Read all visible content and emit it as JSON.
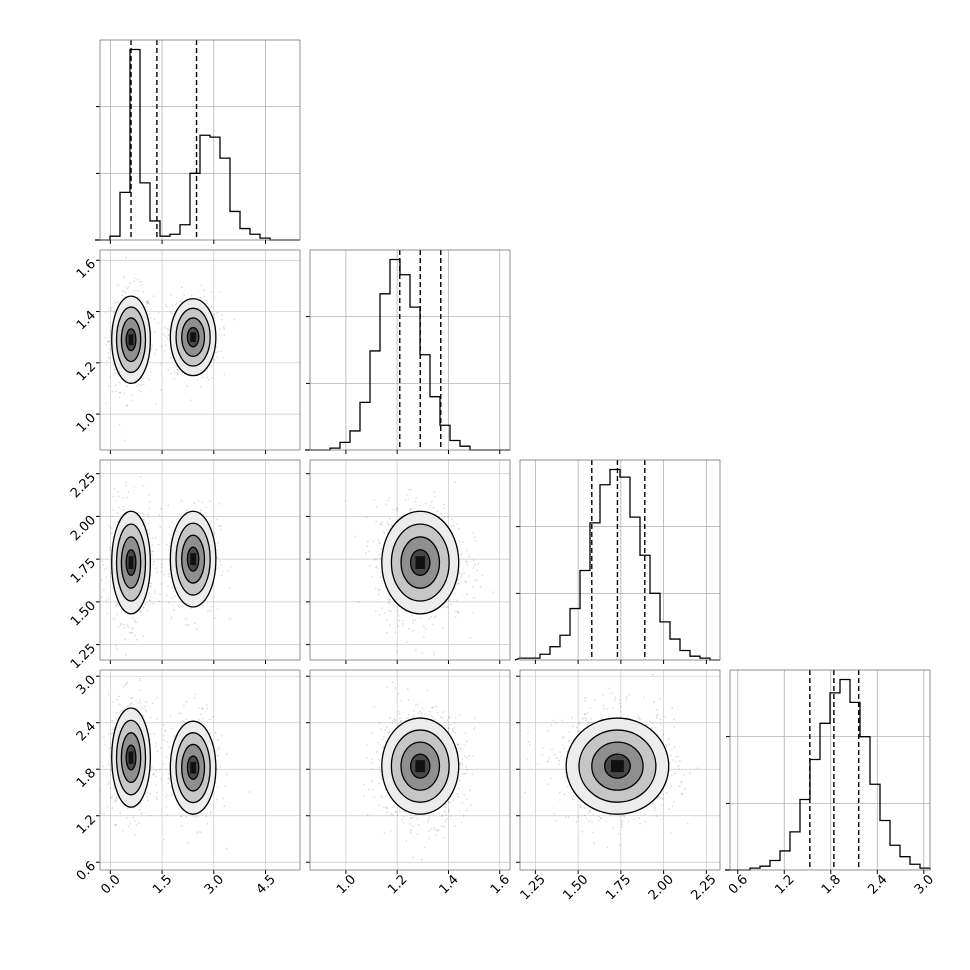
{
  "chart_data": {
    "type": "corner",
    "grid": true,
    "params": [
      {
        "xlim": [
          -0.3,
          5.5
        ],
        "ticks": [
          0.0,
          1.5,
          3.0,
          4.5
        ],
        "tick_labels": [
          "0.0",
          "1.5",
          "3.0",
          "4.5"
        ],
        "quantiles": [
          0.6,
          1.35,
          2.5
        ]
      },
      {
        "xlim": [
          0.86,
          1.64
        ],
        "ticks": [
          1.0,
          1.2,
          1.4,
          1.6
        ],
        "tick_labels": [
          "1.0",
          "1.2",
          "1.4",
          "1.6"
        ],
        "quantiles": [
          1.21,
          1.29,
          1.37
        ]
      },
      {
        "xlim": [
          1.16,
          2.33
        ],
        "ticks": [
          1.25,
          1.5,
          1.75,
          2.0,
          2.25
        ],
        "tick_labels": [
          "1.25",
          "1.50",
          "1.75",
          "2.00",
          "2.25"
        ],
        "quantiles": [
          1.58,
          1.73,
          1.89
        ]
      },
      {
        "xlim": [
          0.5,
          3.08
        ],
        "ticks": [
          0.6,
          1.2,
          1.8,
          2.4,
          3.0
        ],
        "tick_labels": [
          "0.6",
          "1.2",
          "1.8",
          "2.4",
          "3.0"
        ],
        "quantiles": [
          1.53,
          1.84,
          2.16
        ]
      }
    ],
    "histograms": [
      {
        "edges": [
          -0.3,
          5.5
        ],
        "counts": [
          0.0,
          0.02,
          0.25,
          1.0,
          0.3,
          0.1,
          0.02,
          0.03,
          0.08,
          0.35,
          0.55,
          0.54,
          0.43,
          0.15,
          0.06,
          0.03,
          0.01,
          0.0,
          0.0,
          0.0
        ]
      },
      {
        "edges": [
          0.86,
          1.64
        ],
        "counts": [
          0.0,
          0.0,
          0.01,
          0.04,
          0.1,
          0.25,
          0.52,
          0.82,
          1.0,
          0.92,
          0.75,
          0.5,
          0.28,
          0.13,
          0.05,
          0.02,
          0.0,
          0.0,
          0.0,
          0.0
        ]
      },
      {
        "edges": [
          1.16,
          2.33
        ],
        "counts": [
          0.01,
          0.01,
          0.03,
          0.07,
          0.13,
          0.27,
          0.47,
          0.72,
          0.92,
          1.0,
          0.96,
          0.75,
          0.55,
          0.35,
          0.2,
          0.11,
          0.05,
          0.02,
          0.01,
          0.0
        ]
      },
      {
        "edges": [
          0.5,
          3.08
        ],
        "counts": [
          0.0,
          0.0,
          0.01,
          0.02,
          0.05,
          0.1,
          0.2,
          0.37,
          0.58,
          0.77,
          0.93,
          1.0,
          0.88,
          0.7,
          0.45,
          0.26,
          0.13,
          0.07,
          0.03,
          0.01
        ]
      }
    ],
    "bivariate": [
      {
        "row": 1,
        "col": 0,
        "modes": [
          {
            "x": 0.6,
            "y": 1.29,
            "sx": 0.28,
            "sy": 0.085,
            "w": 1.0
          },
          {
            "x": 2.4,
            "y": 1.3,
            "sx": 0.33,
            "sy": 0.075,
            "w": 0.7
          }
        ]
      },
      {
        "row": 2,
        "col": 0,
        "modes": [
          {
            "x": 0.6,
            "y": 1.73,
            "sx": 0.28,
            "sy": 0.15,
            "w": 1.0
          },
          {
            "x": 2.4,
            "y": 1.75,
            "sx": 0.33,
            "sy": 0.14,
            "w": 0.7
          }
        ]
      },
      {
        "row": 2,
        "col": 1,
        "modes": [
          {
            "x": 1.29,
            "y": 1.73,
            "sx": 0.075,
            "sy": 0.15,
            "w": 1.0
          }
        ]
      },
      {
        "row": 3,
        "col": 0,
        "modes": [
          {
            "x": 0.6,
            "y": 1.95,
            "sx": 0.28,
            "sy": 0.32,
            "w": 1.0
          },
          {
            "x": 2.4,
            "y": 1.82,
            "sx": 0.33,
            "sy": 0.3,
            "w": 0.7
          }
        ]
      },
      {
        "row": 3,
        "col": 1,
        "modes": [
          {
            "x": 1.29,
            "y": 1.84,
            "sx": 0.075,
            "sy": 0.31,
            "w": 1.0
          }
        ]
      },
      {
        "row": 3,
        "col": 2,
        "modes": [
          {
            "x": 1.73,
            "y": 1.84,
            "sx": 0.15,
            "sy": 0.31,
            "w": 1.0
          }
        ]
      }
    ],
    "contour_levels_sigma": [
      0.5,
      1.0,
      1.5,
      2.0
    ]
  }
}
